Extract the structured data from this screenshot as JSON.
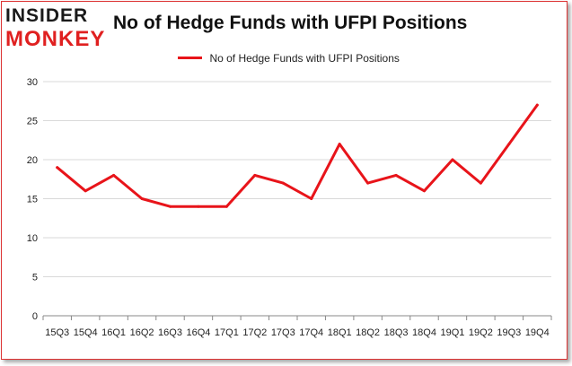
{
  "header": {
    "logo_top": "INSIDER",
    "logo_bottom": "MONKEY",
    "title": "No of Hedge Funds with UFPI Positions"
  },
  "colors": {
    "series": "#e8141a",
    "grid": "#d9d9d9",
    "axis": "#888888",
    "border": "#dd3333"
  },
  "chart_data": {
    "type": "line",
    "title": "No of Hedge Funds with UFPI Positions",
    "legend_position": "top-center",
    "grid": true,
    "ylim": [
      0,
      30
    ],
    "yticks": [
      0,
      5,
      10,
      15,
      20,
      25,
      30
    ],
    "categories": [
      "15Q3",
      "15Q4",
      "16Q1",
      "16Q2",
      "16Q3",
      "16Q4",
      "17Q1",
      "17Q2",
      "17Q3",
      "17Q4",
      "18Q1",
      "18Q2",
      "18Q3",
      "18Q4",
      "19Q1",
      "19Q2",
      "19Q3",
      "19Q4"
    ],
    "series": [
      {
        "name": "No of Hedge Funds with UFPI Positions",
        "values": [
          19,
          16,
          18,
          15,
          14,
          14,
          14,
          18,
          17,
          15,
          22,
          17,
          18,
          16,
          20,
          17,
          22,
          27
        ]
      }
    ]
  }
}
